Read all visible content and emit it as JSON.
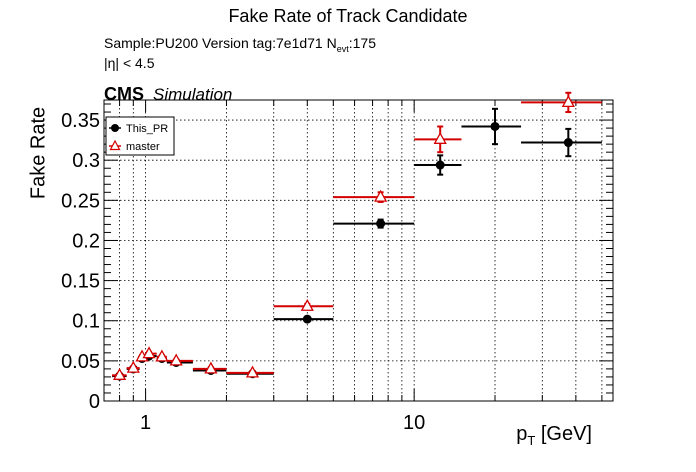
{
  "chart_data": {
    "type": "scatter",
    "title": "Fake Rate of Track Candidate",
    "info": {
      "sample_line_pre": "Sample:PU200   Version tag:7e1d71  N",
      "sample_line_sub": "evt",
      "sample_line_post": ":175",
      "eta_cut": "|η| < 4.5"
    },
    "cms_label": "CMS",
    "cms_sublabel": "Simulation",
    "xlabel_main": "p",
    "xlabel_sub": "T",
    "xlabel_unit": " [GeV]",
    "ylabel": "Fake Rate",
    "x_scale": "log",
    "xlim": [
      0.7,
      55
    ],
    "ylim": [
      0,
      0.375
    ],
    "x_tick_labels": [
      {
        "value": 1,
        "label": "1"
      },
      {
        "value": 10,
        "label": "10"
      }
    ],
    "y_ticks": [
      0,
      0.05,
      0.1,
      0.15,
      0.2,
      0.25,
      0.3,
      0.35
    ],
    "y_tick_labels": [
      "0",
      "0.05",
      "0.1",
      "0.15",
      "0.2",
      "0.25",
      "0.3",
      "0.35"
    ],
    "grid": true,
    "legend_position": "top-left",
    "series": [
      {
        "name": "This_PR",
        "color": "#000000",
        "marker": "filled-circle",
        "points": [
          {
            "x": 0.8,
            "xlo": 0.75,
            "xhi": 0.85,
            "y": 0.031,
            "err": 0.002
          },
          {
            "x": 0.9,
            "xlo": 0.85,
            "xhi": 0.95,
            "y": 0.04,
            "err": 0.002
          },
          {
            "x": 0.97,
            "xlo": 0.95,
            "xhi": 1.0,
            "y": 0.053,
            "err": 0.002
          },
          {
            "x": 1.03,
            "xlo": 1.0,
            "xhi": 1.1,
            "y": 0.056,
            "err": 0.002
          },
          {
            "x": 1.15,
            "xlo": 1.1,
            "xhi": 1.2,
            "y": 0.053,
            "err": 0.002
          },
          {
            "x": 1.3,
            "xlo": 1.2,
            "xhi": 1.5,
            "y": 0.048,
            "err": 0.002
          },
          {
            "x": 1.75,
            "xlo": 1.5,
            "xhi": 2.0,
            "y": 0.038,
            "err": 0.002
          },
          {
            "x": 2.5,
            "xlo": 2.0,
            "xhi": 3.0,
            "y": 0.034,
            "err": 0.002
          },
          {
            "x": 4.0,
            "xlo": 3.0,
            "xhi": 5.0,
            "y": 0.102,
            "err": 0.003
          },
          {
            "x": 7.5,
            "xlo": 5.0,
            "xhi": 10.0,
            "y": 0.221,
            "err": 0.005
          },
          {
            "x": 12.5,
            "xlo": 10.0,
            "xhi": 15.0,
            "y": 0.294,
            "err": 0.012
          },
          {
            "x": 20.0,
            "xlo": 15.0,
            "xhi": 25.0,
            "y": 0.342,
            "err": 0.022
          },
          {
            "x": 37.5,
            "xlo": 25.0,
            "xhi": 50.0,
            "y": 0.322,
            "err": 0.017
          }
        ]
      },
      {
        "name": "master",
        "color": "#d40000",
        "marker": "open-triangle",
        "points": [
          {
            "x": 0.8,
            "xlo": 0.75,
            "xhi": 0.85,
            "y": 0.032,
            "err": 0.002
          },
          {
            "x": 0.9,
            "xlo": 0.85,
            "xhi": 0.95,
            "y": 0.041,
            "err": 0.002
          },
          {
            "x": 0.97,
            "xlo": 0.95,
            "xhi": 1.0,
            "y": 0.055,
            "err": 0.002
          },
          {
            "x": 1.03,
            "xlo": 1.0,
            "xhi": 1.1,
            "y": 0.059,
            "err": 0.002
          },
          {
            "x": 1.15,
            "xlo": 1.1,
            "xhi": 1.2,
            "y": 0.055,
            "err": 0.002
          },
          {
            "x": 1.3,
            "xlo": 1.2,
            "xhi": 1.5,
            "y": 0.05,
            "err": 0.002
          },
          {
            "x": 1.75,
            "xlo": 1.5,
            "xhi": 2.0,
            "y": 0.04,
            "err": 0.002
          },
          {
            "x": 2.5,
            "xlo": 2.0,
            "xhi": 3.0,
            "y": 0.035,
            "err": 0.002
          },
          {
            "x": 4.0,
            "xlo": 3.0,
            "xhi": 5.0,
            "y": 0.118,
            "err": 0.003
          },
          {
            "x": 7.5,
            "xlo": 5.0,
            "xhi": 10.0,
            "y": 0.254,
            "err": 0.006
          },
          {
            "x": 12.5,
            "xlo": 10.0,
            "xhi": 15.0,
            "y": 0.326,
            "err": 0.016
          },
          {
            "x": 37.5,
            "xlo": 25.0,
            "xhi": 50.0,
            "y": 0.372,
            "err": 0.012
          }
        ]
      }
    ]
  }
}
